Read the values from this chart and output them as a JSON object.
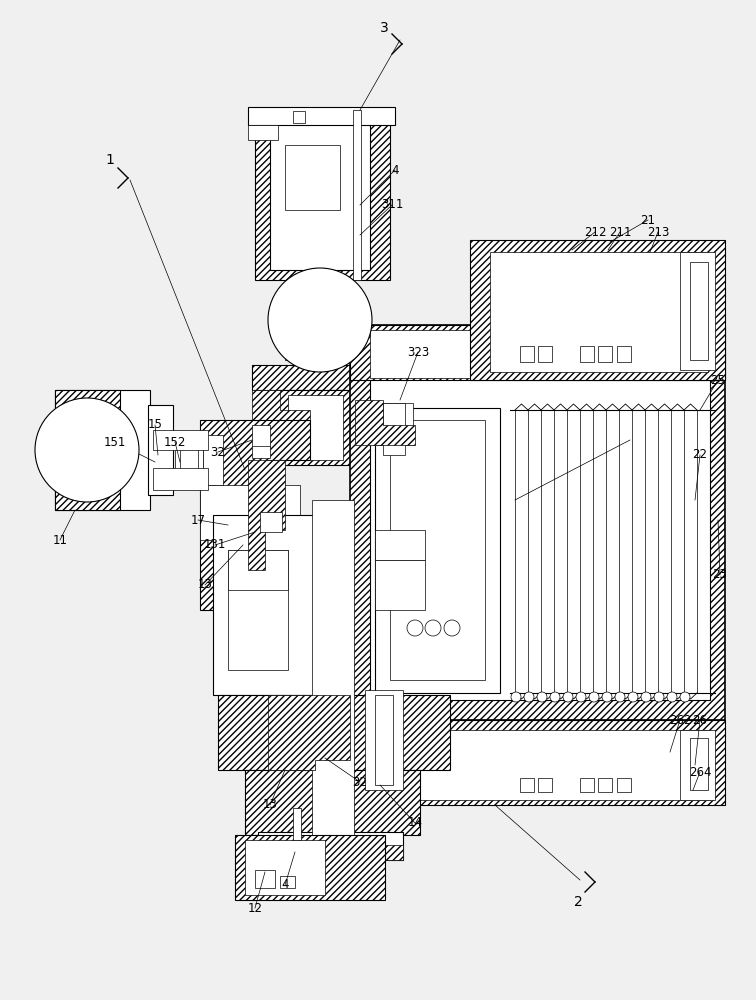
{
  "bg_color": "#f0f0f0",
  "fig_width": 7.56,
  "fig_height": 10.0,
  "dpi": 100,
  "lw_thin": 0.5,
  "lw_med": 0.8,
  "lw_thick": 1.2
}
